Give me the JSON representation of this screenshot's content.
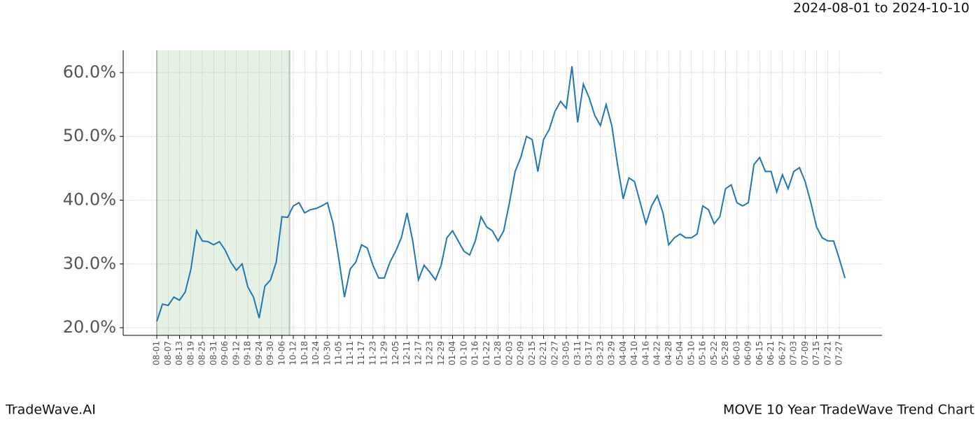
{
  "chart_data": {
    "type": "line",
    "subtitle": "2024-08-01 to 2024-10-10",
    "footer_left": "TradeWave.AI",
    "footer_right": "MOVE 10 Year TradeWave Trend Chart",
    "categories": [
      "08-01",
      null,
      "08-07",
      null,
      "08-13",
      null,
      "08-19",
      null,
      "08-25",
      null,
      "08-31",
      null,
      "09-06",
      null,
      "09-12",
      null,
      "09-18",
      null,
      "09-24",
      null,
      "09-30",
      null,
      "10-06",
      null,
      "10-12",
      null,
      "10-18",
      null,
      "10-24",
      null,
      "10-30",
      null,
      "11-05",
      null,
      "11-11",
      null,
      "11-17",
      null,
      "11-23",
      null,
      "11-29",
      null,
      "12-05",
      null,
      "12-11",
      null,
      "12-17",
      null,
      "12-23",
      null,
      "12-29",
      null,
      "01-04",
      null,
      "01-10",
      null,
      "01-16",
      null,
      "01-22",
      null,
      "01-28",
      null,
      "02-03",
      null,
      "02-09",
      null,
      "02-15",
      null,
      "02-21",
      null,
      "02-27",
      null,
      "03-05",
      null,
      "03-11",
      null,
      "03-17",
      null,
      "03-23",
      null,
      "03-29",
      null,
      "04-04",
      null,
      "04-10",
      null,
      "04-16",
      null,
      "04-22",
      null,
      "04-28",
      null,
      "05-04",
      null,
      "05-10",
      null,
      "05-16",
      null,
      "05-22",
      null,
      "05-28",
      null,
      "06-03",
      null,
      "06-09",
      null,
      "06-15",
      null,
      "06-21",
      null,
      "06-27",
      null,
      "07-03",
      null,
      "07-09",
      null,
      "07-15",
      null,
      "07-21",
      null,
      "07-27",
      null
    ],
    "series": [
      {
        "color": "#1f77b4",
        "values": [
          21,
          23.7,
          23.5,
          24.8,
          24.3,
          25.6,
          29.2,
          35.2,
          33.6,
          33.5,
          33,
          33.5,
          32.2,
          30.3,
          29,
          30,
          26.4,
          24.8,
          21.5,
          26.5,
          27.5,
          30.3,
          37.4,
          37.3,
          39.1,
          39.6,
          38,
          38.5,
          38.7,
          39.1,
          39.6,
          36.3,
          30.8,
          24.8,
          29.2,
          30.3,
          33,
          32.5,
          29.8,
          27.8,
          27.8,
          30.3,
          32,
          34.1,
          38,
          33.6,
          27.5,
          29.8,
          28.7,
          27.5,
          29.8,
          34.1,
          35.2,
          33.6,
          32,
          31.4,
          33.6,
          37.4,
          35.8,
          35.2,
          33.6,
          35.2,
          39.6,
          44.5,
          46.7,
          50,
          49.5,
          44.5,
          49.5,
          51.1,
          53.9,
          55.5,
          54.4,
          61,
          52.2,
          58.2,
          56.1,
          53.3,
          51.7,
          55,
          51.7,
          45.6,
          40.2,
          43.5,
          42.9,
          39.6,
          36.3,
          39.1,
          40.7,
          38,
          33,
          34.1,
          34.7,
          34.1,
          34.1,
          34.7,
          39.1,
          38.5,
          36.3,
          37.4,
          41.8,
          42.4,
          39.6,
          39.1,
          39.6,
          45.6,
          46.7,
          44.5,
          44.5,
          41.3,
          44,
          41.8,
          44.5,
          45.1,
          42.9,
          39.6,
          35.8,
          34.1,
          33.6,
          33.6,
          30.8,
          27.8
        ]
      }
    ],
    "shaded_range": [
      "08-01",
      "10-10"
    ],
    "shade_color": "#d5e8d4",
    "ylim": [
      18.8,
      63.5
    ],
    "yticks": [
      {
        "value": 20,
        "label": "20.0%"
      },
      {
        "value": 30,
        "label": "30.0%"
      },
      {
        "value": 40,
        "label": "40.0%"
      },
      {
        "value": 50,
        "label": "50.0%"
      },
      {
        "value": 60,
        "label": "60.0%"
      }
    ],
    "grid": true
  }
}
